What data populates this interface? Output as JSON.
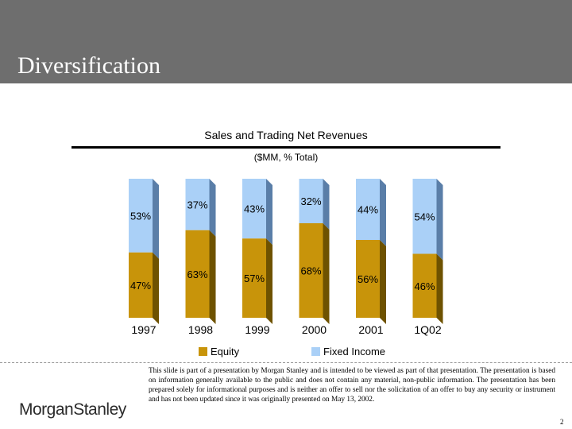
{
  "header": {
    "title": "Diversification"
  },
  "chart_data": {
    "type": "bar",
    "stacked": true,
    "percent_stacked": true,
    "title": "Sales and Trading Net Revenues",
    "subtitle": "($MM, % Total)",
    "categories": [
      "1997",
      "1998",
      "1999",
      "2000",
      "2001",
      "1Q02"
    ],
    "series": [
      {
        "name": "Equity",
        "values": [
          47,
          63,
          57,
          68,
          56,
          46
        ],
        "labels": [
          "47%",
          "63%",
          "57%",
          "68%",
          "56%",
          "46%"
        ]
      },
      {
        "name": "Fixed Income",
        "values": [
          53,
          37,
          43,
          32,
          44,
          54
        ],
        "labels": [
          "53%",
          "37%",
          "43%",
          "32%",
          "44%",
          "54%"
        ]
      }
    ],
    "ylim": [
      0,
      100
    ],
    "legend_position": "bottom",
    "colors": {
      "equity_front": "#c8940a",
      "equity_side": "#6e5200",
      "fixed_front": "#aad0f7",
      "fixed_side": "#5a7ea8"
    }
  },
  "footer": {
    "logo_text": "MorganStanley",
    "disclaimer": "This slide is part of a presentation by Morgan Stanley and is intended to be viewed as part of that presentation. The presentation is based on information generally available to the public and does not contain any material, non-public information. The presentation has been prepared solely for informational purposes and is neither an offer to sell nor the solicitation of an offer to buy any security or instrument and has not been updated since it was originally presented on May 13, 2002.",
    "page_number": "2"
  }
}
